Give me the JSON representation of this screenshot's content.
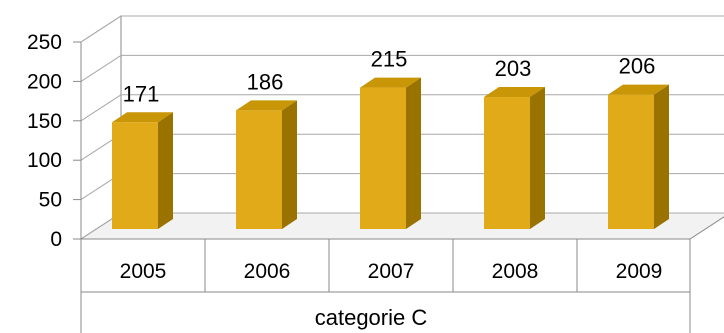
{
  "chart_data": {
    "type": "bar",
    "style": "3d-column",
    "categories": [
      "2005",
      "2006",
      "2007",
      "2008",
      "2009"
    ],
    "values": [
      171,
      186,
      215,
      203,
      206
    ],
    "title": "",
    "xlabel": "categorie C",
    "ylabel": "",
    "ylim": [
      0,
      250
    ],
    "yticks": [
      0,
      50,
      100,
      150,
      200,
      250
    ],
    "grid": true,
    "legend": "none",
    "data_labels": true,
    "colors": {
      "bar_front": "#E0AA18",
      "bar_side": "#9A7200",
      "bar_top": "#C89606",
      "grid": "#A8A8A8",
      "axis": "#8A8A8A",
      "floor": "#F2F2F2",
      "back_wall": "#FFFFFF",
      "side_wall": "#FFFFFF"
    }
  }
}
